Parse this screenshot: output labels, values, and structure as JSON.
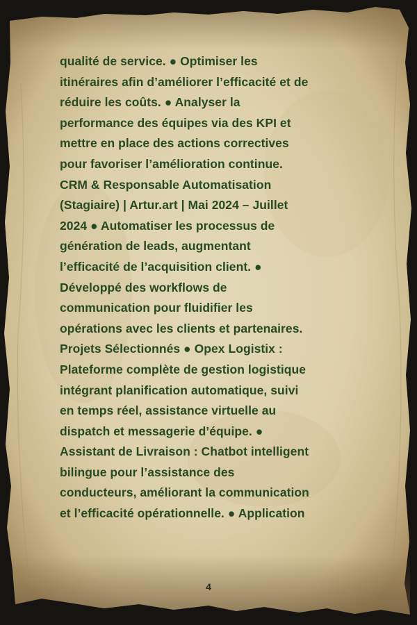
{
  "page": {
    "lines": [
      "qualité de service. ● Optimiser les",
      "itinéraires afin d’améliorer l’efficacité et de",
      "réduire les coûts. ● Analyser la",
      "performance des équipes via des KPI et",
      "mettre en place des actions correctives",
      "pour favoriser l’amélioration continue.",
      "CRM & Responsable Automatisation",
      "(Stagiaire) | Artur.art | Mai 2024 – Juillet",
      "2024 ● Automatiser les processus de",
      "génération de leads, augmentant",
      "l’efficacité de l’acquisition client. ●",
      "Développé des workflows de",
      "communication pour fluidifier les",
      "opérations avec les clients et partenaires.",
      "Projets Sélectionnés ● Opex Logistix :",
      "Plateforme complète de gestion logistique",
      "intégrant planification automatique, suivi",
      "en temps réel, assistance virtuelle au",
      "dispatch et messagerie d’équipe. ●",
      "Assistant de Livraison : Chatbot intelligent",
      "bilingue pour l’assistance des",
      "conducteurs, améliorant la communication",
      "et l’efficacité opérationnelle. ● Application"
    ],
    "page_number": "4"
  },
  "colors": {
    "text": "#274a22",
    "background": "#161411",
    "parchment": "#ded2ae",
    "parchment_edge": "#a8916a"
  }
}
